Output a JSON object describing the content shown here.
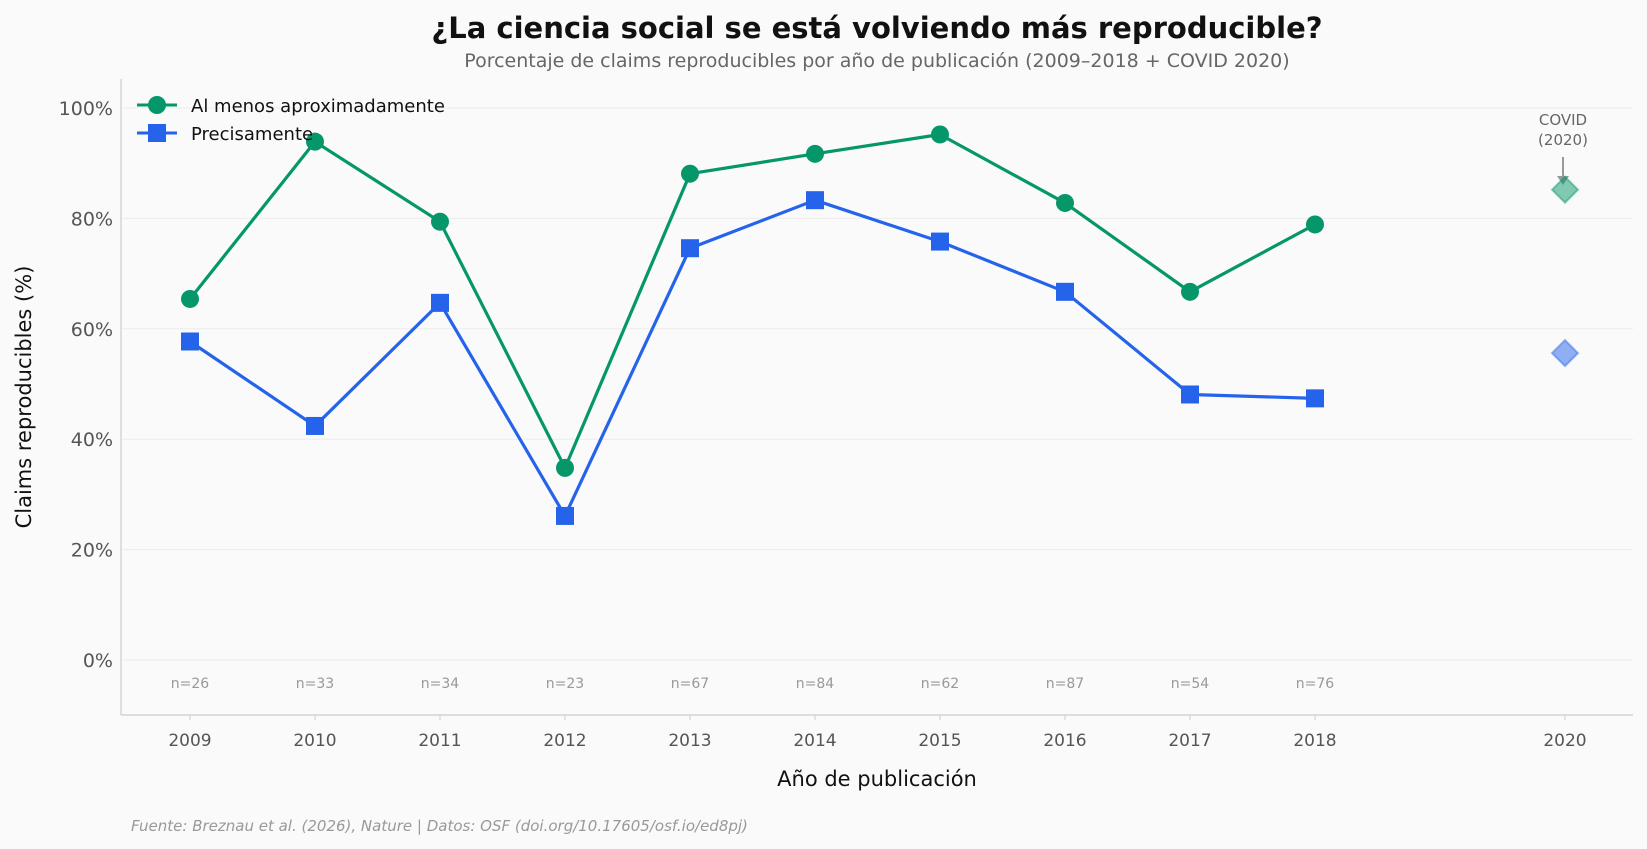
{
  "chart_data": {
    "type": "line",
    "title": "¿La ciencia social se está volviendo más reproducible?",
    "subtitle": "Porcentaje de claims reproducibles por año de publicación (2009–2018 + COVID 2020)",
    "xlabel": "Año de publicación",
    "ylabel": "Claims reproducibles (%)",
    "ylim": [
      -10,
      105
    ],
    "yticks": [
      0,
      20,
      40,
      60,
      80,
      100
    ],
    "ytick_labels": [
      "0%",
      "20%",
      "40%",
      "60%",
      "80%",
      "100%"
    ],
    "x": [
      2009,
      2010,
      2011,
      2012,
      2013,
      2014,
      2015,
      2016,
      2017,
      2018
    ],
    "x_tick_labels": [
      "2009",
      "2010",
      "2011",
      "2012",
      "2013",
      "2014",
      "2015",
      "2016",
      "2017",
      "2018",
      "2020"
    ],
    "n_labels": [
      "n=26",
      "n=33",
      "n=34",
      "n=23",
      "n=67",
      "n=84",
      "n=62",
      "n=87",
      "n=54",
      "n=76"
    ],
    "series": [
      {
        "name": "Al menos aproximadamente",
        "color": "#059669",
        "marker": "circle",
        "values": [
          65.4,
          93.9,
          79.4,
          34.8,
          88.1,
          91.7,
          95.2,
          82.8,
          66.7,
          78.9
        ]
      },
      {
        "name": "Precisamente",
        "color": "#2563eb",
        "marker": "square",
        "values": [
          57.7,
          42.4,
          64.7,
          26.1,
          74.6,
          83.3,
          75.8,
          66.7,
          48.1,
          47.4
        ]
      }
    ],
    "covid": {
      "x": 2020,
      "label_line1": "COVID",
      "label_line2": "(2020)",
      "values": [
        85.2,
        55.6
      ]
    },
    "legend_position": "top-left",
    "grid": true,
    "source": "Fuente: Breznau et al. (2026), Nature | Datos: OSF (doi.org/10.17605/osf.io/ed8pj)"
  }
}
